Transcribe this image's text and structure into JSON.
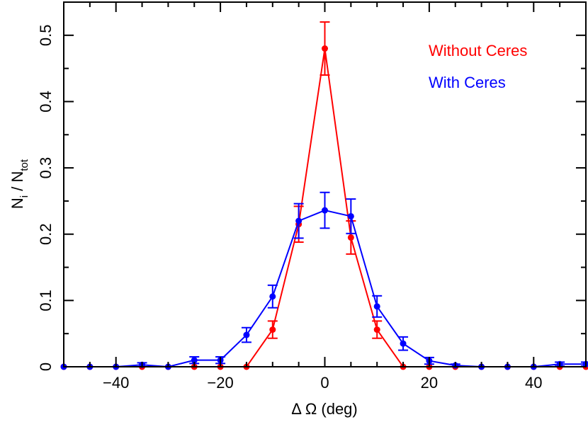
{
  "chart_data": {
    "type": "line",
    "xlabel": "Δ Ω (deg)",
    "ylabel": {
      "base": "N",
      "sub": "i",
      "sep": " / ",
      "base2": "N",
      "sub2": "tot"
    },
    "xlim": [
      -50,
      50
    ],
    "ylim": [
      0,
      0.55
    ],
    "xticks": [
      -40,
      -20,
      0,
      20,
      40
    ],
    "xtick_labels": [
      "−40",
      "−20",
      "0",
      "20",
      "40"
    ],
    "yticks": [
      0,
      0.1,
      0.2,
      0.3,
      0.4,
      0.5
    ],
    "ytick_labels": [
      "0",
      "0.1",
      "0.2",
      "0.3",
      "0.4",
      "0.5"
    ],
    "grid": false,
    "legend_position": "top-right",
    "series": [
      {
        "name": "Without Ceres",
        "color": "#ff0000",
        "x": [
          -50,
          -45,
          -40,
          -35,
          -30,
          -25,
          -20,
          -15,
          -10,
          -5,
          0,
          5,
          10,
          15,
          20,
          25,
          30,
          35,
          40,
          45,
          50
        ],
        "y": [
          0,
          0,
          0,
          0,
          0,
          0,
          0,
          0,
          0.056,
          0.215,
          0.48,
          0.195,
          0.056,
          0,
          0,
          0,
          0,
          0,
          0,
          0,
          0
        ],
        "err": [
          0,
          0,
          0,
          0,
          0,
          0,
          0,
          0,
          0.013,
          0.027,
          0.04,
          0.025,
          0.013,
          0,
          0,
          0,
          0,
          0,
          0,
          0,
          0
        ]
      },
      {
        "name": "With Ceres",
        "color": "#0000ff",
        "x": [
          -50,
          -45,
          -40,
          -35,
          -30,
          -25,
          -20,
          -15,
          -10,
          -5,
          0,
          5,
          10,
          15,
          20,
          25,
          30,
          35,
          40,
          45,
          50
        ],
        "y": [
          0,
          0,
          0,
          0.003,
          0,
          0.01,
          0.01,
          0.048,
          0.106,
          0.22,
          0.236,
          0.227,
          0.091,
          0.035,
          0.009,
          0.002,
          0,
          0,
          0,
          0.004,
          0.004
        ],
        "err": [
          0,
          0,
          0,
          0.003,
          0,
          0.005,
          0.005,
          0.011,
          0.017,
          0.026,
          0.027,
          0.026,
          0.016,
          0.01,
          0.005,
          0.002,
          0,
          0,
          0,
          0.003,
          0.003
        ]
      }
    ]
  }
}
